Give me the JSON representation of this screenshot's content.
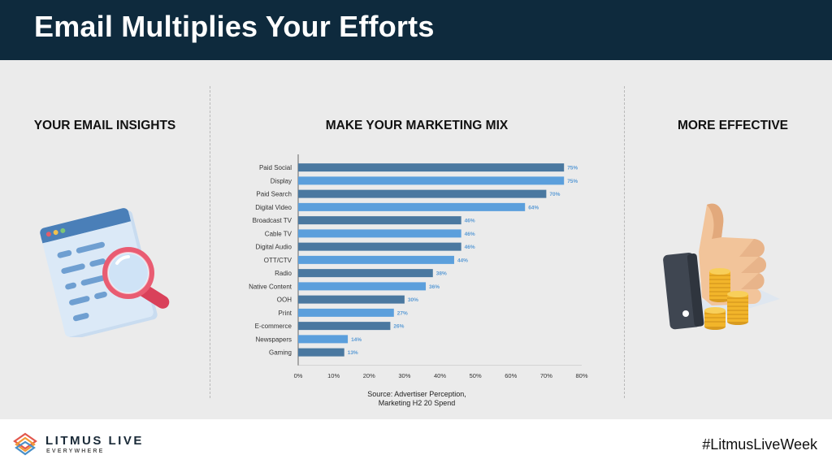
{
  "header": {
    "title": "Email Multiplies Your Efforts"
  },
  "columns": {
    "left_title": "YOUR EMAIL INSIGHTS",
    "center_title": "MAKE YOUR MARKETING MIX",
    "right_title": "MORE EFFECTIVE"
  },
  "icons": {
    "left": "browser-magnifier-icon",
    "right": "thumbs-up-coins-icon",
    "logo": "litmus-layers-icon"
  },
  "colors": {
    "header_bg": "#0e2a3d",
    "bar_dark": "#4a78a0",
    "bar_light": "#5b9fdc",
    "value_label": "#5b9bd5"
  },
  "chart_data": {
    "type": "bar",
    "orientation": "horizontal",
    "categories": [
      "Paid Social",
      "Display",
      "Paid Search",
      "Digital Video",
      "Broadcast TV",
      "Cable TV",
      "Digital Audio",
      "OTT/CTV",
      "Radio",
      "Native Content",
      "OOH",
      "Print",
      "E-commerce",
      "Newspapers",
      "Gaming"
    ],
    "values": [
      75,
      75,
      70,
      64,
      46,
      46,
      46,
      44,
      38,
      36,
      30,
      27,
      26,
      14,
      13
    ],
    "value_labels": [
      "75%",
      "75%",
      "70%",
      "64%",
      "46%",
      "46%",
      "46%",
      "44%",
      "38%",
      "36%",
      "30%",
      "27%",
      "26%",
      "14%",
      "13%"
    ],
    "xlim": [
      0,
      80
    ],
    "x_ticks": [
      "0%",
      "10%",
      "20%",
      "30%",
      "40%",
      "50%",
      "60%",
      "70%",
      "80%"
    ],
    "grid": false,
    "legend": "none"
  },
  "source": {
    "line1": "Source: Advertiser Perception,",
    "line2": "Marketing H2 20 Spend"
  },
  "footer": {
    "logo_text": "LITMUS LIVE",
    "logo_subtext": "EVERYWHERE",
    "hashtag": "#LitmusLiveWeek"
  }
}
